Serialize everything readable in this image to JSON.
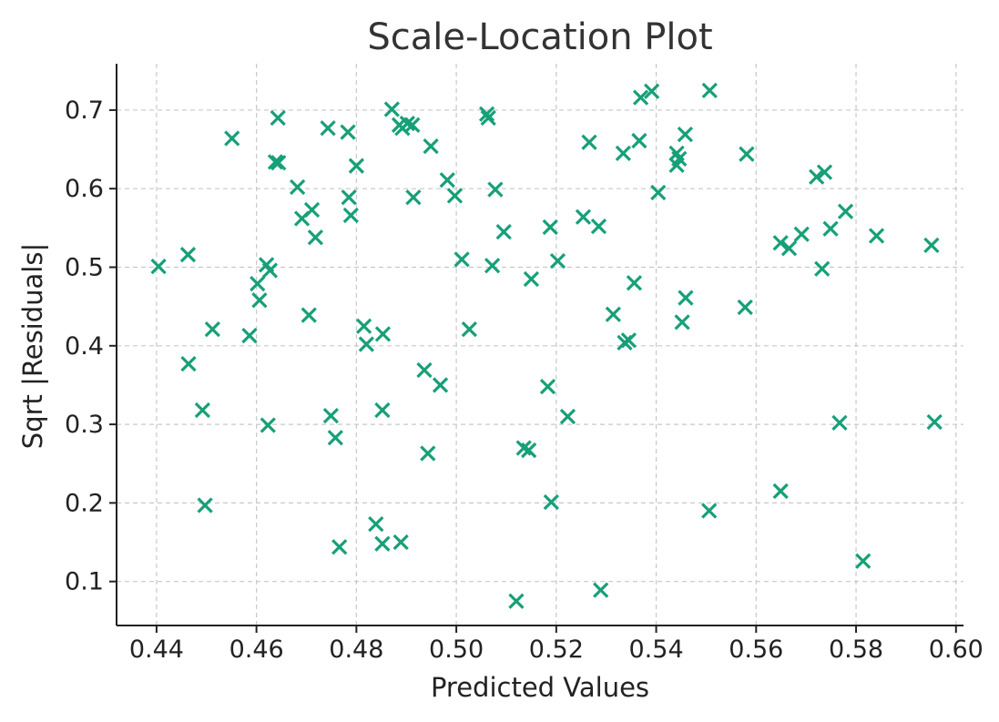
{
  "chart_data": {
    "type": "scatter",
    "title": "Scale-Location Plot",
    "xlabel": "Predicted Values",
    "ylabel": "Sqrt |Residuals|",
    "xlim": [
      0.432,
      0.6015
    ],
    "ylim": [
      0.044,
      0.759
    ],
    "xticks": [
      0.44,
      0.46,
      0.48,
      0.5,
      0.52,
      0.54,
      0.56,
      0.58,
      0.6
    ],
    "xtick_labels": [
      "0.44",
      "0.46",
      "0.48",
      "0.50",
      "0.52",
      "0.54",
      "0.56",
      "0.58",
      "0.60"
    ],
    "yticks": [
      0.1,
      0.2,
      0.3,
      0.4,
      0.5,
      0.6,
      0.7
    ],
    "ytick_labels": [
      "0.1",
      "0.2",
      "0.3",
      "0.4",
      "0.5",
      "0.6",
      "0.7"
    ],
    "grid": true,
    "marker": "x",
    "marker_color": "#17a078",
    "points": [
      [
        0.4404,
        0.501
      ],
      [
        0.4463,
        0.516
      ],
      [
        0.4464,
        0.377
      ],
      [
        0.4492,
        0.318
      ],
      [
        0.4497,
        0.197
      ],
      [
        0.4512,
        0.421
      ],
      [
        0.4551,
        0.664
      ],
      [
        0.4586,
        0.413
      ],
      [
        0.4602,
        0.479
      ],
      [
        0.4606,
        0.458
      ],
      [
        0.462,
        0.503
      ],
      [
        0.4623,
        0.299
      ],
      [
        0.4627,
        0.496
      ],
      [
        0.4638,
        0.634
      ],
      [
        0.4643,
        0.69
      ],
      [
        0.4644,
        0.633
      ],
      [
        0.4682,
        0.602
      ],
      [
        0.4691,
        0.562
      ],
      [
        0.4705,
        0.439
      ],
      [
        0.4711,
        0.573
      ],
      [
        0.4718,
        0.538
      ],
      [
        0.4743,
        0.677
      ],
      [
        0.4749,
        0.311
      ],
      [
        0.4758,
        0.283
      ],
      [
        0.4766,
        0.144
      ],
      [
        0.4783,
        0.672
      ],
      [
        0.4785,
        0.589
      ],
      [
        0.4789,
        0.566
      ],
      [
        0.48,
        0.629
      ],
      [
        0.4815,
        0.425
      ],
      [
        0.482,
        0.402
      ],
      [
        0.4839,
        0.173
      ],
      [
        0.4852,
        0.318
      ],
      [
        0.4852,
        0.148
      ],
      [
        0.4853,
        0.415
      ],
      [
        0.4871,
        0.701
      ],
      [
        0.4886,
        0.681
      ],
      [
        0.4889,
        0.15
      ],
      [
        0.4892,
        0.677
      ],
      [
        0.4902,
        0.683
      ],
      [
        0.4912,
        0.681
      ],
      [
        0.4914,
        0.589
      ],
      [
        0.4936,
        0.369
      ],
      [
        0.4943,
        0.263
      ],
      [
        0.4949,
        0.654
      ],
      [
        0.4968,
        0.35
      ],
      [
        0.4982,
        0.611
      ],
      [
        0.4997,
        0.591
      ],
      [
        0.5011,
        0.51
      ],
      [
        0.5026,
        0.421
      ],
      [
        0.5061,
        0.695
      ],
      [
        0.5064,
        0.69
      ],
      [
        0.5072,
        0.502
      ],
      [
        0.5078,
        0.599
      ],
      [
        0.5095,
        0.545
      ],
      [
        0.512,
        0.075
      ],
      [
        0.5135,
        0.27
      ],
      [
        0.5145,
        0.267
      ],
      [
        0.515,
        0.485
      ],
      [
        0.5183,
        0.348
      ],
      [
        0.5188,
        0.551
      ],
      [
        0.519,
        0.201
      ],
      [
        0.5203,
        0.508
      ],
      [
        0.5223,
        0.31
      ],
      [
        0.5254,
        0.564
      ],
      [
        0.5266,
        0.659
      ],
      [
        0.5285,
        0.552
      ],
      [
        0.5289,
        0.089
      ],
      [
        0.5314,
        0.44
      ],
      [
        0.5334,
        0.645
      ],
      [
        0.5337,
        0.404
      ],
      [
        0.5345,
        0.407
      ],
      [
        0.5356,
        0.48
      ],
      [
        0.5366,
        0.661
      ],
      [
        0.5369,
        0.716
      ],
      [
        0.5391,
        0.724
      ],
      [
        0.5404,
        0.595
      ],
      [
        0.5441,
        0.645
      ],
      [
        0.5441,
        0.63
      ],
      [
        0.5446,
        0.638
      ],
      [
        0.5452,
        0.43
      ],
      [
        0.5458,
        0.669
      ],
      [
        0.5459,
        0.461
      ],
      [
        0.5507,
        0.725
      ],
      [
        0.5506,
        0.19
      ],
      [
        0.5578,
        0.449
      ],
      [
        0.5581,
        0.644
      ],
      [
        0.5649,
        0.531
      ],
      [
        0.5649,
        0.215
      ],
      [
        0.5666,
        0.524
      ],
      [
        0.5691,
        0.542
      ],
      [
        0.5721,
        0.615
      ],
      [
        0.5732,
        0.498
      ],
      [
        0.5737,
        0.621
      ],
      [
        0.5749,
        0.549
      ],
      [
        0.5767,
        0.302
      ],
      [
        0.5779,
        0.571
      ],
      [
        0.5814,
        0.126
      ],
      [
        0.5841,
        0.54
      ],
      [
        0.5951,
        0.528
      ],
      [
        0.5957,
        0.303
      ]
    ]
  }
}
